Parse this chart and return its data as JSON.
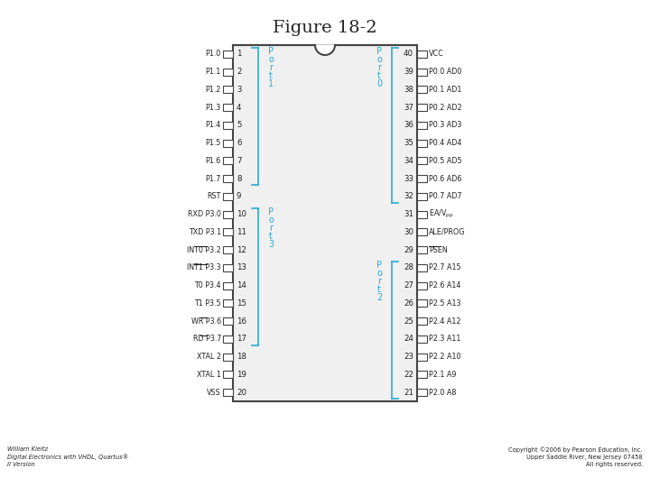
{
  "title": "Figure 18-2",
  "bg": "#ffffff",
  "chip_fill": "#f0f0f0",
  "chip_edge": "#444444",
  "cyan": "#29ABD4",
  "tc": "#222222",
  "left_pins": [
    {
      "num": 1,
      "label": "P1.0",
      "overline": null
    },
    {
      "num": 2,
      "label": "P1.1",
      "overline": null
    },
    {
      "num": 3,
      "label": "P1.2",
      "overline": null
    },
    {
      "num": 4,
      "label": "P1.3",
      "overline": null
    },
    {
      "num": 5,
      "label": "P1.4",
      "overline": null
    },
    {
      "num": 6,
      "label": "P1.5",
      "overline": null
    },
    {
      "num": 7,
      "label": "P1.6",
      "overline": null
    },
    {
      "num": 8,
      "label": "P1.7",
      "overline": null
    },
    {
      "num": 9,
      "label": "RST",
      "overline": null
    },
    {
      "num": 10,
      "label": "RXD P3.0",
      "overline": null
    },
    {
      "num": 11,
      "label": "TXD P3.1",
      "overline": null
    },
    {
      "num": 12,
      "label": "INT0 P3.2",
      "overline": "INT0"
    },
    {
      "num": 13,
      "label": "INT1 P3.3",
      "overline": "INT1"
    },
    {
      "num": 14,
      "label": "T0 P3.4",
      "overline": null
    },
    {
      "num": 15,
      "label": "T1 P3.5",
      "overline": null
    },
    {
      "num": 16,
      "label": "WR P3.6",
      "overline": "WR"
    },
    {
      "num": 17,
      "label": "RD P3.7",
      "overline": "RD"
    },
    {
      "num": 18,
      "label": "XTAL 2",
      "overline": null
    },
    {
      "num": 19,
      "label": "XTAL 1",
      "overline": null
    },
    {
      "num": 20,
      "label": "VSS",
      "overline": null
    }
  ],
  "right_pins": [
    {
      "num": 40,
      "label": "VCC",
      "overline": null
    },
    {
      "num": 39,
      "label": "P0.0 AD0",
      "overline": null
    },
    {
      "num": 38,
      "label": "P0.1 AD1",
      "overline": null
    },
    {
      "num": 37,
      "label": "P0.2 AD2",
      "overline": null
    },
    {
      "num": 36,
      "label": "P0.3 AD3",
      "overline": null
    },
    {
      "num": 35,
      "label": "P0.4 AD4",
      "overline": null
    },
    {
      "num": 34,
      "label": "P0.5 AD5",
      "overline": null
    },
    {
      "num": 33,
      "label": "P0.6 AD6",
      "overline": null
    },
    {
      "num": 32,
      "label": "P0.7 AD7",
      "overline": null
    },
    {
      "num": 31,
      "label": "EA/Vpp",
      "overline": null,
      "subscript": true
    },
    {
      "num": 30,
      "label": "ALE/PROG",
      "overline": null
    },
    {
      "num": 29,
      "label": "PSEN",
      "overline": "PSEN"
    },
    {
      "num": 28,
      "label": "P2.7 A15",
      "overline": null
    },
    {
      "num": 27,
      "label": "P2.6 A14",
      "overline": null
    },
    {
      "num": 26,
      "label": "P2.5 A13",
      "overline": null
    },
    {
      "num": 25,
      "label": "P2.4 A12",
      "overline": null
    },
    {
      "num": 24,
      "label": "P2.3 A11",
      "overline": null
    },
    {
      "num": 23,
      "label": "P2.2 A10",
      "overline": null
    },
    {
      "num": 22,
      "label": "P2.1 A9",
      "overline": null
    },
    {
      "num": 21,
      "label": "P2.0 A8",
      "overline": null
    }
  ],
  "footer_left": "William Kleitz\nDigital Electronics with VHDL, Quartus®\nII Version",
  "footer_right": "Copyright ©2006 by Pearson Education, Inc.\nUpper Saddle River, New Jersey 07458\nAll rights reserved."
}
